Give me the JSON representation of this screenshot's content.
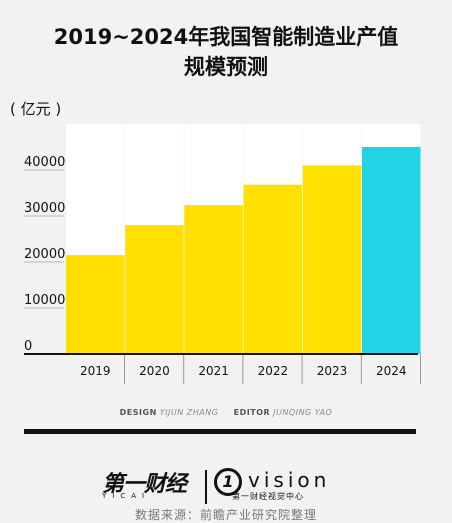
{
  "header": {
    "title_line1": "2019~2024年我国智能制造业产值",
    "title_line2": "规模预测"
  },
  "chart_data": {
    "type": "bar",
    "title": "2019~2024年我国智能制造业产值规模预测",
    "unit_label": "( 亿元 )",
    "categories": [
      "2019",
      "2020",
      "2021",
      "2022",
      "2023",
      "2024"
    ],
    "values": [
      21500,
      28000,
      32400,
      36800,
      41000,
      45000
    ],
    "colors": [
      "#ffe000",
      "#ffe000",
      "#ffe000",
      "#ffe000",
      "#ffe000",
      "#22d3e6"
    ],
    "y_ticks": [
      "0",
      "10000",
      "20000",
      "30000",
      "40000"
    ],
    "ylim": [
      0,
      50000
    ],
    "grid": false,
    "background_column_color": "#ffffff",
    "bar_color": "#ffe000",
    "highlight_color": "#22d3e6"
  },
  "credits": {
    "design_label": "DESIGN",
    "design_name": "YIJUN ZHANG",
    "editor_label": "EDITOR",
    "editor_name": "JUNQING YAO"
  },
  "footer": {
    "logo_cn": "第一财经",
    "logo_en": "YICAI",
    "vision_mark": "1",
    "vision": "vision",
    "vision_sub": "第一财经视觉中心",
    "source": "数据来源：前瞻产业研究院整理"
  }
}
